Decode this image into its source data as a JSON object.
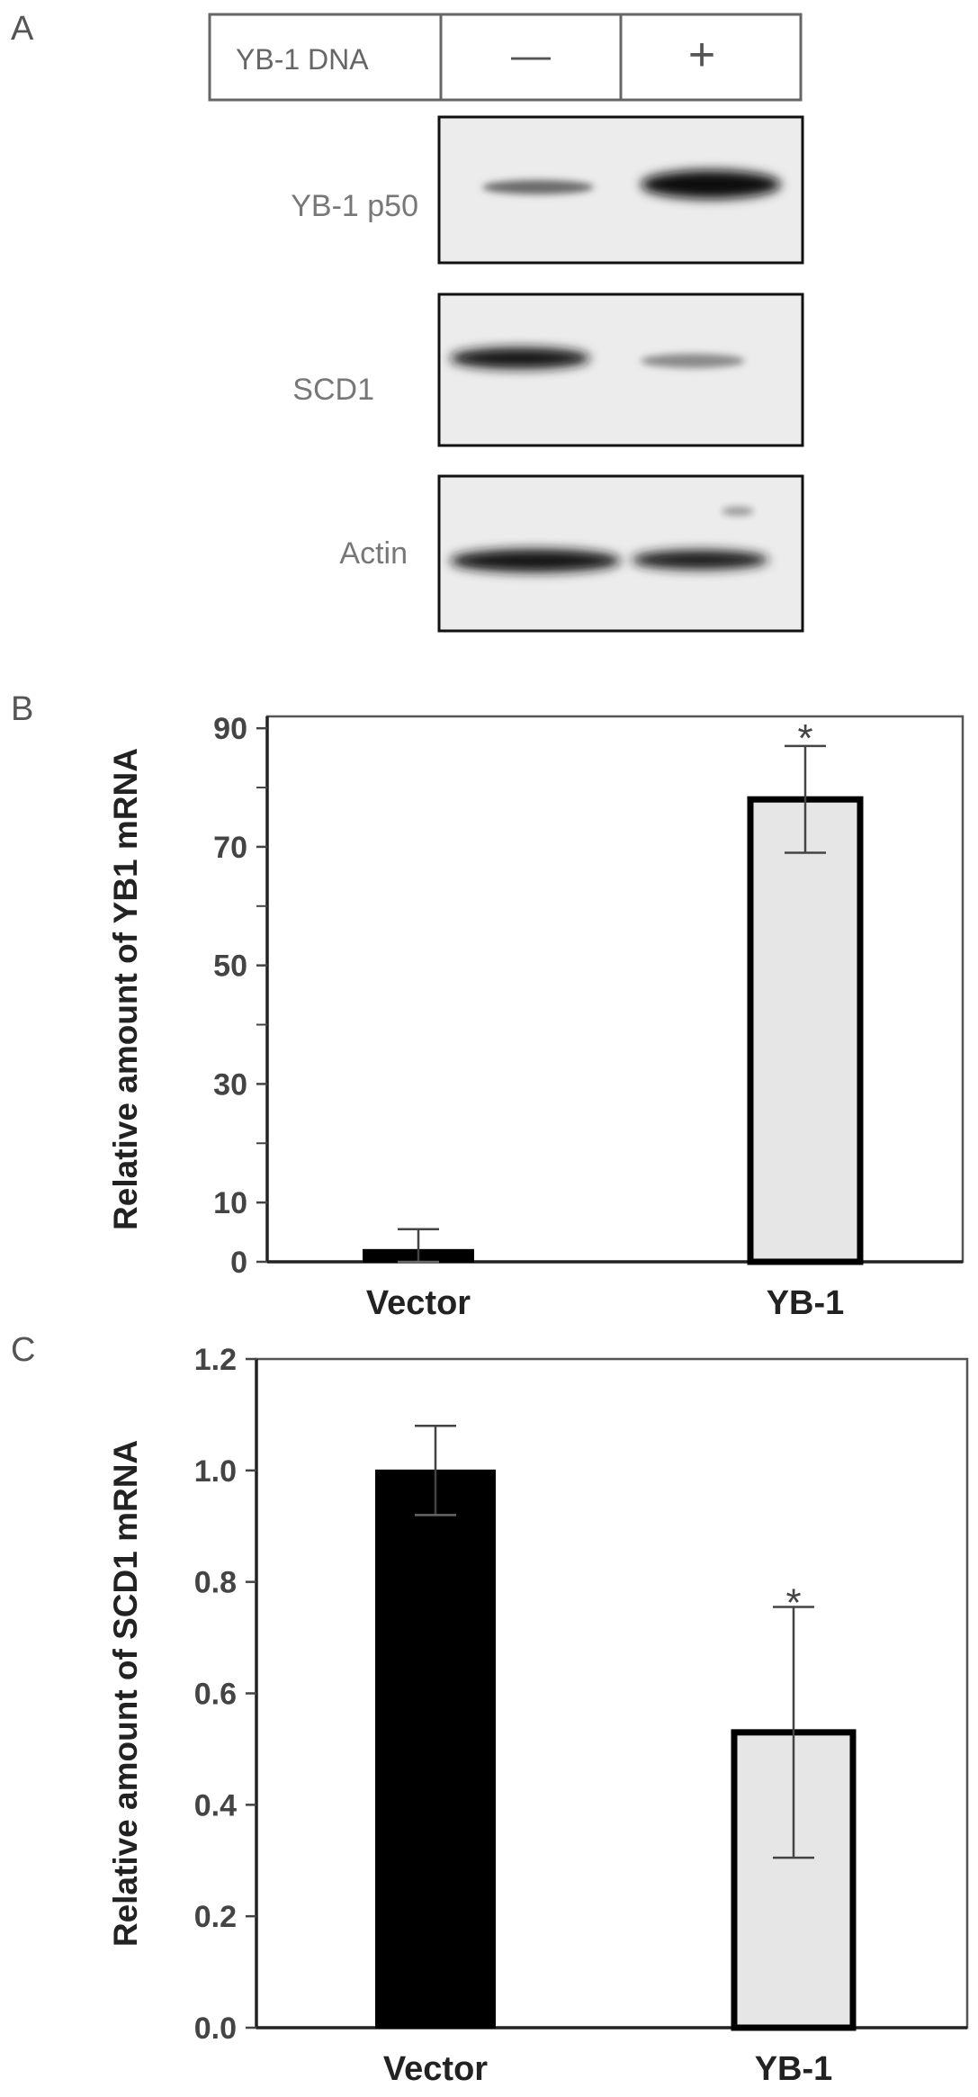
{
  "panels": {
    "a": {
      "letter": "A",
      "header": {
        "label": "YB-1 DNA",
        "minus": "—",
        "plus": "+"
      },
      "blots": [
        {
          "label": "YB-1 p50"
        },
        {
          "label": "SCD1"
        },
        {
          "label": "Actin"
        }
      ]
    },
    "b": {
      "letter": "B"
    },
    "c": {
      "letter": "C"
    }
  },
  "chart_data": [
    {
      "type": "bar",
      "categories": [
        "Vector",
        "YB-1"
      ],
      "values": [
        2,
        78
      ],
      "errors": [
        3.5,
        9
      ],
      "significance": [
        "",
        "*"
      ],
      "bar_colors": [
        "#000000",
        "#e6e6e6"
      ],
      "ylabel": "Relative amount of YB1 mRNA",
      "ylim": [
        0,
        92
      ],
      "yticks": [
        "0",
        "10",
        "30",
        "50",
        "70",
        "90"
      ],
      "ytick_values": [
        0,
        10,
        30,
        50,
        70,
        90
      ],
      "grid": false
    },
    {
      "type": "bar",
      "categories": [
        "Vector",
        "YB-1"
      ],
      "values": [
        1.0,
        0.53
      ],
      "errors": [
        0.08,
        0.225
      ],
      "significance": [
        "",
        "*"
      ],
      "bar_colors": [
        "#000000",
        "#e6e6e6"
      ],
      "ylabel": "Relative amount of SCD1 mRNA",
      "ylim": [
        0,
        1.2
      ],
      "yticks": [
        "0.0",
        "0.2",
        "0.4",
        "0.6",
        "0.8",
        "1.0",
        "1.2"
      ],
      "ytick_values": [
        0,
        0.2,
        0.4,
        0.6,
        0.8,
        1.0,
        1.2
      ],
      "grid": false
    }
  ]
}
